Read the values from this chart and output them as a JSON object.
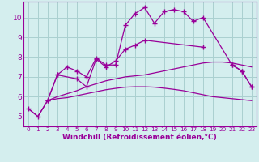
{
  "x": [
    0,
    1,
    2,
    3,
    4,
    5,
    6,
    7,
    8,
    9,
    10,
    11,
    12,
    13,
    14,
    15,
    16,
    17,
    18,
    19,
    20,
    21,
    22,
    23
  ],
  "line1_x": [
    0,
    1,
    2,
    3,
    4,
    5,
    6,
    7,
    8,
    9,
    10,
    11,
    12,
    13,
    14,
    15,
    16,
    17,
    18,
    21,
    22,
    23
  ],
  "line1_y": [
    5.4,
    5.0,
    5.8,
    7.1,
    7.5,
    7.3,
    7.0,
    7.95,
    7.6,
    7.6,
    9.6,
    10.2,
    10.5,
    9.7,
    10.3,
    10.4,
    10.3,
    9.8,
    10.0,
    7.6,
    7.3,
    6.5
  ],
  "line2_x": [
    2,
    3,
    5,
    6,
    7,
    8,
    9,
    10,
    11,
    12,
    18
  ],
  "line2_y": [
    5.8,
    7.1,
    6.9,
    6.5,
    7.9,
    7.5,
    7.8,
    8.4,
    8.6,
    8.85,
    8.5
  ],
  "line3_x": [
    0,
    1,
    2,
    3,
    4,
    5,
    6,
    7,
    8,
    9,
    10,
    11,
    12,
    13,
    14,
    15,
    16,
    17,
    18,
    19,
    20,
    21,
    22,
    23
  ],
  "line3_y": [
    5.4,
    5.0,
    5.8,
    5.9,
    5.95,
    6.05,
    6.15,
    6.25,
    6.35,
    6.42,
    6.48,
    6.5,
    6.5,
    6.48,
    6.43,
    6.37,
    6.3,
    6.2,
    6.1,
    6.0,
    5.95,
    5.9,
    5.85,
    5.8
  ],
  "line4_x": [
    2,
    3,
    4,
    5,
    6,
    7,
    8,
    9,
    10,
    11,
    12,
    13,
    14,
    15,
    16,
    17,
    18,
    19,
    20,
    21,
    22,
    23
  ],
  "line4_y": [
    5.8,
    6.0,
    6.15,
    6.3,
    6.5,
    6.65,
    6.8,
    6.9,
    7.0,
    7.05,
    7.1,
    7.2,
    7.3,
    7.4,
    7.5,
    7.6,
    7.7,
    7.75,
    7.75,
    7.7,
    7.6,
    7.5
  ],
  "color": "#990099",
  "bg_color": "#d4eeee",
  "grid_color": "#aad0d0",
  "xlabel": "Windchill (Refroidissement éolien,°C)",
  "ylim": [
    4.5,
    10.8
  ],
  "xlim": [
    -0.5,
    23.5
  ],
  "yticks": [
    5,
    6,
    7,
    8,
    9,
    10
  ],
  "xticks": [
    0,
    1,
    2,
    3,
    4,
    5,
    6,
    7,
    8,
    9,
    10,
    11,
    12,
    13,
    14,
    15,
    16,
    17,
    18,
    19,
    20,
    21,
    22,
    23
  ]
}
